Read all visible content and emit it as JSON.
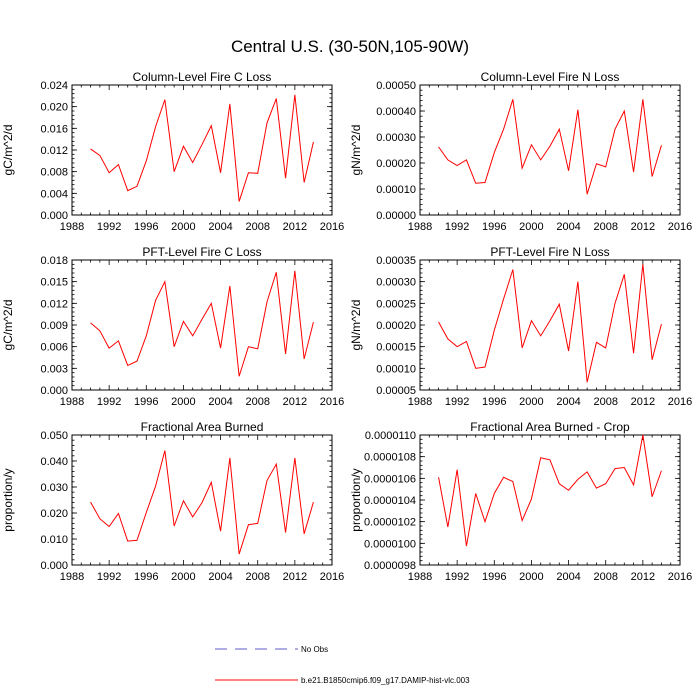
{
  "figure": {
    "title": "Central U.S. (30-50N,105-90W)"
  },
  "legend": {
    "entries": [
      {
        "label": "No Obs",
        "color": "#5c5cc8",
        "style": "dashed"
      },
      {
        "label": "b.e21.B1850cmip6.f09_g17.DAMIP-hist-vlc.003",
        "color": "#ff0000",
        "style": "solid"
      }
    ]
  },
  "chart_data": [
    {
      "type": "line",
      "title": "Column-Level Fire C Loss",
      "ylabel": "gC/m^2/d",
      "xlim": [
        1988,
        2016
      ],
      "ylim": [
        0,
        0.024
      ],
      "xticks": [
        1988,
        1992,
        1996,
        2000,
        2004,
        2008,
        2012,
        2016
      ],
      "yticks": [
        "0.000",
        "0.004",
        "0.008",
        "0.012",
        "0.016",
        "0.020",
        "0.024"
      ],
      "x": [
        1990,
        1991,
        1992,
        1993,
        1994,
        1995,
        1996,
        1997,
        1998,
        1999,
        2000,
        2001,
        2002,
        2003,
        2004,
        2005,
        2006,
        2007,
        2008,
        2009,
        2010,
        2011,
        2012,
        2013,
        2014
      ],
      "series": [
        {
          "color": "#ff0000",
          "values": [
            0.0122,
            0.011,
            0.0078,
            0.0093,
            0.0045,
            0.0053,
            0.01,
            0.0163,
            0.0213,
            0.008,
            0.0127,
            0.0097,
            0.013,
            0.0165,
            0.0078,
            0.0205,
            0.0025,
            0.0078,
            0.0077,
            0.017,
            0.0215,
            0.0068,
            0.0222,
            0.006,
            0.0135
          ]
        }
      ]
    },
    {
      "type": "line",
      "title": "Column-Level Fire N Loss",
      "ylabel": "gN/m^2/d",
      "xlim": [
        1988,
        2016
      ],
      "ylim": [
        0,
        0.0005
      ],
      "xticks": [
        1988,
        1992,
        1996,
        2000,
        2004,
        2008,
        2012,
        2016
      ],
      "yticks": [
        "0.00000",
        "0.00010",
        "0.00020",
        "0.00030",
        "0.00040",
        "0.00050"
      ],
      "x": [
        1990,
        1991,
        1992,
        1993,
        1994,
        1995,
        1996,
        1997,
        1998,
        1999,
        2000,
        2001,
        2002,
        2003,
        2004,
        2005,
        2006,
        2007,
        2008,
        2009,
        2010,
        2011,
        2012,
        2013,
        2014
      ],
      "series": [
        {
          "color": "#ff0000",
          "values": [
            0.000262,
            0.000212,
            0.00019,
            0.000212,
            0.000122,
            0.000125,
            0.00024,
            0.00033,
            0.000445,
            0.00018,
            0.00027,
            0.000212,
            0.000265,
            0.00033,
            0.00017,
            0.000405,
            8e-05,
            0.000197,
            0.000185,
            0.00033,
            0.0004,
            0.000165,
            0.000445,
            0.000148,
            0.000268
          ]
        }
      ]
    },
    {
      "type": "line",
      "title": "PFT-Level Fire C Loss",
      "ylabel": "gC/m^2/d",
      "xlim": [
        1988,
        2016
      ],
      "ylim": [
        0,
        0.018
      ],
      "xticks": [
        1988,
        1992,
        1996,
        2000,
        2004,
        2008,
        2012,
        2016
      ],
      "yticks": [
        "0.000",
        "0.003",
        "0.006",
        "0.009",
        "0.012",
        "0.015",
        "0.018"
      ],
      "x": [
        1990,
        1991,
        1992,
        1993,
        1994,
        1995,
        1996,
        1997,
        1998,
        1999,
        2000,
        2001,
        2002,
        2003,
        2004,
        2005,
        2006,
        2007,
        2008,
        2009,
        2010,
        2011,
        2012,
        2013,
        2014
      ],
      "series": [
        {
          "color": "#ff0000",
          "values": [
            0.0093,
            0.0082,
            0.0058,
            0.0068,
            0.0034,
            0.004,
            0.0075,
            0.0124,
            0.015,
            0.006,
            0.0095,
            0.0075,
            0.0098,
            0.012,
            0.0058,
            0.0144,
            0.0019,
            0.006,
            0.0057,
            0.0122,
            0.0163,
            0.005,
            0.0165,
            0.0043,
            0.0094
          ]
        }
      ]
    },
    {
      "type": "line",
      "title": "PFT-Level Fire N Loss",
      "ylabel": "gN/m^2/d",
      "xlim": [
        1988,
        2016
      ],
      "ylim": [
        5e-05,
        0.00035
      ],
      "xticks": [
        1988,
        1992,
        1996,
        2000,
        2004,
        2008,
        2012,
        2016
      ],
      "yticks": [
        "0.00005",
        "0.00010",
        "0.00015",
        "0.00020",
        "0.00025",
        "0.00030",
        "0.00035"
      ],
      "x": [
        1990,
        1991,
        1992,
        1993,
        1994,
        1995,
        1996,
        1997,
        1998,
        1999,
        2000,
        2001,
        2002,
        2003,
        2004,
        2005,
        2006,
        2007,
        2008,
        2009,
        2010,
        2011,
        2012,
        2013,
        2014
      ],
      "series": [
        {
          "color": "#ff0000",
          "values": [
            0.000207,
            0.000168,
            0.00015,
            0.000162,
            0.0001,
            0.000103,
            0.000188,
            0.00026,
            0.000328,
            0.000147,
            0.00021,
            0.000175,
            0.00021,
            0.000248,
            0.00014,
            0.0003,
            6.8e-05,
            0.00016,
            0.000147,
            0.00025,
            0.000317,
            0.000135,
            0.00034,
            0.00012,
            0.000202
          ]
        }
      ]
    },
    {
      "type": "line",
      "title": "Fractional Area Burned",
      "ylabel": "proportion/y",
      "xlim": [
        1988,
        2016
      ],
      "ylim": [
        0,
        0.05
      ],
      "xticks": [
        1988,
        1992,
        1996,
        2000,
        2004,
        2008,
        2012,
        2016
      ],
      "yticks": [
        "0.000",
        "0.010",
        "0.020",
        "0.030",
        "0.040",
        "0.050"
      ],
      "x": [
        1990,
        1991,
        1992,
        1993,
        1994,
        1995,
        1996,
        1997,
        1998,
        1999,
        2000,
        2001,
        2002,
        2003,
        2004,
        2005,
        2006,
        2007,
        2008,
        2009,
        2010,
        2011,
        2012,
        2013,
        2014
      ],
      "series": [
        {
          "color": "#ff0000",
          "values": [
            0.0242,
            0.0178,
            0.0148,
            0.0198,
            0.0092,
            0.0095,
            0.0202,
            0.0303,
            0.044,
            0.015,
            0.0247,
            0.0185,
            0.024,
            0.0318,
            0.013,
            0.0412,
            0.0042,
            0.0155,
            0.016,
            0.0325,
            0.0388,
            0.0125,
            0.0412,
            0.012,
            0.0242
          ]
        }
      ]
    },
    {
      "type": "line",
      "title": "Fractional Area Burned - Crop",
      "ylabel": "proportion/y",
      "xlim": [
        1988,
        2016
      ],
      "ylim": [
        9.8e-06,
        1.1e-05
      ],
      "xticks": [
        1988,
        1992,
        1996,
        2000,
        2004,
        2008,
        2012,
        2016
      ],
      "yticks": [
        "0.0000098",
        "0.0000100",
        "0.0000102",
        "0.0000104",
        "0.0000106",
        "0.0000108",
        "0.0000110"
      ],
      "x": [
        1990,
        1991,
        1992,
        1993,
        1994,
        1995,
        1996,
        1997,
        1998,
        1999,
        2000,
        2001,
        2002,
        2003,
        2004,
        2005,
        2006,
        2007,
        2008,
        2009,
        2010,
        2011,
        2012,
        2013,
        2014
      ],
      "series": [
        {
          "color": "#ff0000",
          "values": [
            1.061e-05,
            1.015e-05,
            1.068e-05,
            9.975e-06,
            1.046e-05,
            1.02e-05,
            1.046e-05,
            1.061e-05,
            1.057e-05,
            1.021e-05,
            1.041e-05,
            1.079e-05,
            1.077e-05,
            1.055e-05,
            1.049e-05,
            1.059e-05,
            1.066e-05,
            1.051e-05,
            1.055e-05,
            1.069e-05,
            1.07e-05,
            1.054e-05,
            1.1e-05,
            1.043e-05,
            1.067e-05
          ]
        }
      ]
    }
  ]
}
